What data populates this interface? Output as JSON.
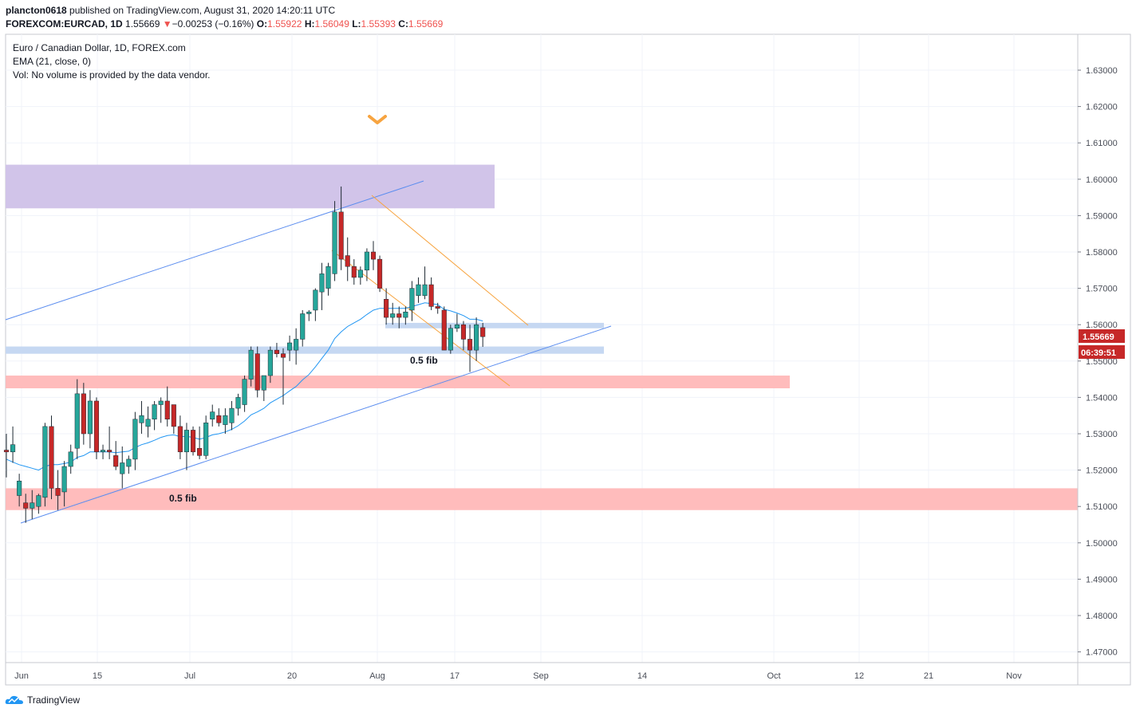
{
  "header": {
    "author": "plancton0618",
    "published_text": "published on TradingView.com, August 31, 2020 14:20:11 UTC",
    "symbol_line": "FOREXCOM:EURCAD, 1D",
    "last": "1.55669",
    "change": "−0.00253 (−0.16%)",
    "o_label": "O:",
    "o": "1.55922",
    "h_label": "H:",
    "h": "1.56049",
    "l_label": "L:",
    "l": "1.55393",
    "c_label": "C:",
    "c": "1.55669"
  },
  "legend": {
    "title": "Euro / Canadian Dollar, 1D, FOREX.com",
    "ema": "EMA (21, close, 0)",
    "vol": "Vol: No volume is provided by the data vendor."
  },
  "price_tag": "1.55669",
  "countdown": "06:39:51",
  "annotations": {
    "fib_top": "0.5 fib",
    "fib_bottom": "0.5 fib"
  },
  "footer": {
    "brand": "TradingView"
  },
  "colors": {
    "up": "#26a69a",
    "down": "#c62828",
    "ema": "#2196f3",
    "purple_zone": "#d1c4e9",
    "red_zone": "#ffbcbc",
    "blue_zone": "#c6d8f2",
    "channel": "#f7a440",
    "trendline": "#5b8def"
  },
  "chart_data": {
    "type": "candlestick",
    "title": "Euro / Canadian Dollar, 1D, FOREX.com",
    "ylim": [
      1.465,
      1.637
    ],
    "y_ticks": [
      "1.63000",
      "1.62000",
      "1.61000",
      "1.60000",
      "1.59000",
      "1.58000",
      "1.57000",
      "1.56000",
      "1.55000",
      "1.54000",
      "1.53000",
      "1.52000",
      "1.51000",
      "1.50000",
      "1.49000",
      "1.48000",
      "1.47000"
    ],
    "x_ticks": [
      "Jun",
      "15",
      "Jul",
      "20",
      "Aug",
      "17",
      "Sep",
      "14",
      "Oct",
      "12",
      "21",
      "Nov"
    ],
    "grid": true,
    "candles": [
      {
        "o": 1.5255,
        "h": 1.53,
        "l": 1.518,
        "c": 1.525
      },
      {
        "o": 1.525,
        "h": 1.532,
        "l": 1.522,
        "c": 1.527
      },
      {
        "o": 1.513,
        "h": 1.519,
        "l": 1.51,
        "c": 1.517
      },
      {
        "o": 1.511,
        "h": 1.5135,
        "l": 1.5055,
        "c": 1.5095
      },
      {
        "o": 1.5095,
        "h": 1.5145,
        "l": 1.5065,
        "c": 1.511
      },
      {
        "o": 1.51,
        "h": 1.5135,
        "l": 1.508,
        "c": 1.513
      },
      {
        "o": 1.5125,
        "h": 1.533,
        "l": 1.51,
        "c": 1.532
      },
      {
        "o": 1.532,
        "h": 1.535,
        "l": 1.512,
        "c": 1.515
      },
      {
        "o": 1.515,
        "h": 1.52,
        "l": 1.509,
        "c": 1.513
      },
      {
        "o": 1.514,
        "h": 1.5225,
        "l": 1.51,
        "c": 1.521
      },
      {
        "o": 1.521,
        "h": 1.527,
        "l": 1.519,
        "c": 1.525
      },
      {
        "o": 1.526,
        "h": 1.545,
        "l": 1.523,
        "c": 1.541
      },
      {
        "o": 1.541,
        "h": 1.544,
        "l": 1.527,
        "c": 1.53
      },
      {
        "o": 1.53,
        "h": 1.542,
        "l": 1.526,
        "c": 1.539
      },
      {
        "o": 1.539,
        "h": 1.54,
        "l": 1.523,
        "c": 1.525
      },
      {
        "o": 1.525,
        "h": 1.527,
        "l": 1.523,
        "c": 1.5255
      },
      {
        "o": 1.5255,
        "h": 1.532,
        "l": 1.523,
        "c": 1.525
      },
      {
        "o": 1.524,
        "h": 1.528,
        "l": 1.52,
        "c": 1.521
      },
      {
        "o": 1.519,
        "h": 1.5265,
        "l": 1.515,
        "c": 1.522
      },
      {
        "o": 1.521,
        "h": 1.524,
        "l": 1.519,
        "c": 1.523
      },
      {
        "o": 1.523,
        "h": 1.536,
        "l": 1.52,
        "c": 1.534
      },
      {
        "o": 1.533,
        "h": 1.539,
        "l": 1.53,
        "c": 1.535
      },
      {
        "o": 1.532,
        "h": 1.5375,
        "l": 1.529,
        "c": 1.534
      },
      {
        "o": 1.534,
        "h": 1.539,
        "l": 1.531,
        "c": 1.538
      },
      {
        "o": 1.538,
        "h": 1.54,
        "l": 1.533,
        "c": 1.539
      },
      {
        "o": 1.539,
        "h": 1.543,
        "l": 1.532,
        "c": 1.534
      },
      {
        "o": 1.538,
        "h": 1.538,
        "l": 1.53,
        "c": 1.532
      },
      {
        "o": 1.532,
        "h": 1.535,
        "l": 1.523,
        "c": 1.525
      },
      {
        "o": 1.525,
        "h": 1.533,
        "l": 1.52,
        "c": 1.531
      },
      {
        "o": 1.531,
        "h": 1.532,
        "l": 1.524,
        "c": 1.525
      },
      {
        "o": 1.526,
        "h": 1.532,
        "l": 1.523,
        "c": 1.524
      },
      {
        "o": 1.524,
        "h": 1.535,
        "l": 1.523,
        "c": 1.533
      },
      {
        "o": 1.534,
        "h": 1.538,
        "l": 1.532,
        "c": 1.536
      },
      {
        "o": 1.535,
        "h": 1.537,
        "l": 1.532,
        "c": 1.533
      },
      {
        "o": 1.5325,
        "h": 1.537,
        "l": 1.53,
        "c": 1.535
      },
      {
        "o": 1.533,
        "h": 1.539,
        "l": 1.531,
        "c": 1.537
      },
      {
        "o": 1.537,
        "h": 1.541,
        "l": 1.535,
        "c": 1.54
      },
      {
        "o": 1.538,
        "h": 1.546,
        "l": 1.536,
        "c": 1.545
      },
      {
        "o": 1.545,
        "h": 1.554,
        "l": 1.543,
        "c": 1.553
      },
      {
        "o": 1.552,
        "h": 1.554,
        "l": 1.54,
        "c": 1.542
      },
      {
        "o": 1.542,
        "h": 1.546,
        "l": 1.539,
        "c": 1.546
      },
      {
        "o": 1.546,
        "h": 1.554,
        "l": 1.544,
        "c": 1.553
      },
      {
        "o": 1.553,
        "h": 1.555,
        "l": 1.551,
        "c": 1.552
      },
      {
        "o": 1.552,
        "h": 1.5535,
        "l": 1.538,
        "c": 1.551
      },
      {
        "o": 1.553,
        "h": 1.557,
        "l": 1.55,
        "c": 1.555
      },
      {
        "o": 1.553,
        "h": 1.559,
        "l": 1.549,
        "c": 1.556
      },
      {
        "o": 1.556,
        "h": 1.564,
        "l": 1.554,
        "c": 1.563
      },
      {
        "o": 1.563,
        "h": 1.564,
        "l": 1.561,
        "c": 1.5635
      },
      {
        "o": 1.564,
        "h": 1.57,
        "l": 1.561,
        "c": 1.5695
      },
      {
        "o": 1.569,
        "h": 1.577,
        "l": 1.564,
        "c": 1.574
      },
      {
        "o": 1.57,
        "h": 1.577,
        "l": 1.568,
        "c": 1.576
      },
      {
        "o": 1.574,
        "h": 1.594,
        "l": 1.572,
        "c": 1.591
      },
      {
        "o": 1.591,
        "h": 1.598,
        "l": 1.575,
        "c": 1.578
      },
      {
        "o": 1.579,
        "h": 1.584,
        "l": 1.572,
        "c": 1.576
      },
      {
        "o": 1.576,
        "h": 1.578,
        "l": 1.571,
        "c": 1.573
      },
      {
        "o": 1.573,
        "h": 1.576,
        "l": 1.571,
        "c": 1.575
      },
      {
        "o": 1.575,
        "h": 1.581,
        "l": 1.572,
        "c": 1.58
      },
      {
        "o": 1.58,
        "h": 1.583,
        "l": 1.575,
        "c": 1.578
      },
      {
        "o": 1.578,
        "h": 1.579,
        "l": 1.569,
        "c": 1.57
      },
      {
        "o": 1.567,
        "h": 1.57,
        "l": 1.56,
        "c": 1.562
      },
      {
        "o": 1.562,
        "h": 1.566,
        "l": 1.56,
        "c": 1.563
      },
      {
        "o": 1.563,
        "h": 1.565,
        "l": 1.559,
        "c": 1.562
      },
      {
        "o": 1.562,
        "h": 1.565,
        "l": 1.56,
        "c": 1.5635
      },
      {
        "o": 1.564,
        "h": 1.572,
        "l": 1.561,
        "c": 1.57
      },
      {
        "o": 1.568,
        "h": 1.573,
        "l": 1.566,
        "c": 1.571
      },
      {
        "o": 1.568,
        "h": 1.576,
        "l": 1.567,
        "c": 1.571
      },
      {
        "o": 1.571,
        "h": 1.573,
        "l": 1.564,
        "c": 1.565
      },
      {
        "o": 1.565,
        "h": 1.566,
        "l": 1.563,
        "c": 1.5645
      },
      {
        "o": 1.564,
        "h": 1.565,
        "l": 1.553,
        "c": 1.553
      },
      {
        "o": 1.553,
        "h": 1.56,
        "l": 1.552,
        "c": 1.559
      },
      {
        "o": 1.559,
        "h": 1.563,
        "l": 1.558,
        "c": 1.56
      },
      {
        "o": 1.56,
        "h": 1.561,
        "l": 1.553,
        "c": 1.556
      },
      {
        "o": 1.556,
        "h": 1.56,
        "l": 1.547,
        "c": 1.553
      },
      {
        "o": 1.553,
        "h": 1.562,
        "l": 1.55,
        "c": 1.56
      },
      {
        "o": 1.5592,
        "h": 1.5605,
        "l": 1.5539,
        "c": 1.5567
      }
    ],
    "ema21": [
      1.523,
      1.5222,
      1.5215,
      1.521,
      1.5205,
      1.52,
      1.521,
      1.5215,
      1.5215,
      1.5218,
      1.5222,
      1.5235,
      1.524,
      1.525,
      1.525,
      1.525,
      1.525,
      1.5248,
      1.525,
      1.5252,
      1.5262,
      1.527,
      1.5275,
      1.5282,
      1.529,
      1.5295,
      1.5297,
      1.5292,
      1.5293,
      1.529,
      1.5285,
      1.529,
      1.5297,
      1.53,
      1.5305,
      1.5312,
      1.5322,
      1.5335,
      1.5352,
      1.536,
      1.537,
      1.5385,
      1.5395,
      1.5405,
      1.5418,
      1.543,
      1.5448,
      1.5463,
      1.5484,
      1.5507,
      1.553,
      1.5562,
      1.558,
      1.5595,
      1.5605,
      1.5615,
      1.5628,
      1.564,
      1.5645,
      1.5645,
      1.5645,
      1.5645,
      1.5645,
      1.565,
      1.5655,
      1.566,
      1.5658,
      1.5655,
      1.5642,
      1.5638,
      1.5632,
      1.5625,
      1.5615,
      1.5615,
      1.561
    ]
  }
}
